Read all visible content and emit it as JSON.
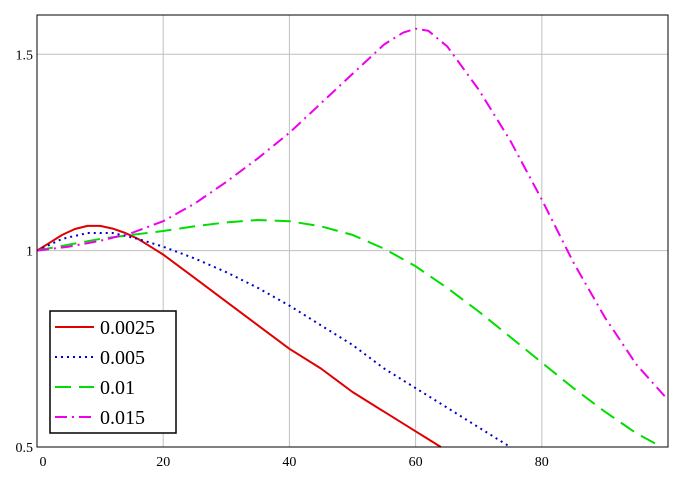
{
  "chart_data": {
    "type": "line",
    "title": "",
    "xlabel": "",
    "ylabel": "",
    "xlim": [
      0,
      100
    ],
    "ylim": [
      0.5,
      1.6
    ],
    "grid": true,
    "legend_position": "bottom-left",
    "x_ticks": [
      {
        "value": 0,
        "label": "0"
      },
      {
        "value": 20,
        "label": "20"
      },
      {
        "value": 40,
        "label": "40"
      },
      {
        "value": 60,
        "label": "60"
      },
      {
        "value": 80,
        "label": "80"
      }
    ],
    "y_ticks": [
      {
        "value": 0.5,
        "label": "0.5"
      },
      {
        "value": 1,
        "label": "1"
      },
      {
        "value": 1.5,
        "label": "1.5"
      }
    ],
    "series": [
      {
        "name": "0.0025",
        "color": "#e00000",
        "dash": "solid",
        "x": [
          0,
          2,
          4,
          6,
          8,
          10,
          12,
          14,
          16,
          18,
          20,
          25,
          30,
          35,
          40,
          45,
          50,
          55,
          60,
          62,
          64
        ],
        "y": [
          1.0,
          1.02,
          1.04,
          1.055,
          1.063,
          1.063,
          1.056,
          1.045,
          1.03,
          1.01,
          0.99,
          0.93,
          0.87,
          0.81,
          0.75,
          0.7,
          0.64,
          0.59,
          0.54,
          0.52,
          0.5
        ]
      },
      {
        "name": "0.005",
        "color": "#0000cc",
        "dash": "dot",
        "x": [
          0,
          4,
          8,
          12,
          16,
          20,
          25,
          30,
          35,
          40,
          45,
          50,
          55,
          60,
          65,
          70,
          75
        ],
        "y": [
          1.0,
          1.03,
          1.045,
          1.045,
          1.03,
          1.01,
          0.98,
          0.945,
          0.905,
          0.86,
          0.81,
          0.76,
          0.7,
          0.65,
          0.6,
          0.55,
          0.5
        ]
      },
      {
        "name": "0.01",
        "color": "#00dd00",
        "dash": "dash",
        "x": [
          0,
          5,
          10,
          15,
          20,
          25,
          30,
          35,
          40,
          45,
          50,
          55,
          60,
          65,
          70,
          75,
          80,
          85,
          90,
          95,
          99
        ],
        "y": [
          1.0,
          1.015,
          1.03,
          1.04,
          1.05,
          1.062,
          1.072,
          1.078,
          1.075,
          1.062,
          1.04,
          1.005,
          0.96,
          0.905,
          0.845,
          0.78,
          0.715,
          0.65,
          0.59,
          0.535,
          0.5
        ]
      },
      {
        "name": "0.015",
        "color": "#ee00ee",
        "dash": "dashdot",
        "x": [
          0,
          5,
          10,
          15,
          20,
          25,
          30,
          35,
          40,
          45,
          50,
          55,
          58,
          60,
          62,
          65,
          70,
          75,
          80,
          85,
          90,
          95,
          100
        ],
        "y": [
          1.0,
          1.01,
          1.025,
          1.045,
          1.075,
          1.12,
          1.175,
          1.235,
          1.3,
          1.375,
          1.45,
          1.525,
          1.555,
          1.565,
          1.56,
          1.52,
          1.41,
          1.28,
          1.13,
          0.97,
          0.83,
          0.71,
          0.62
        ]
      }
    ]
  }
}
